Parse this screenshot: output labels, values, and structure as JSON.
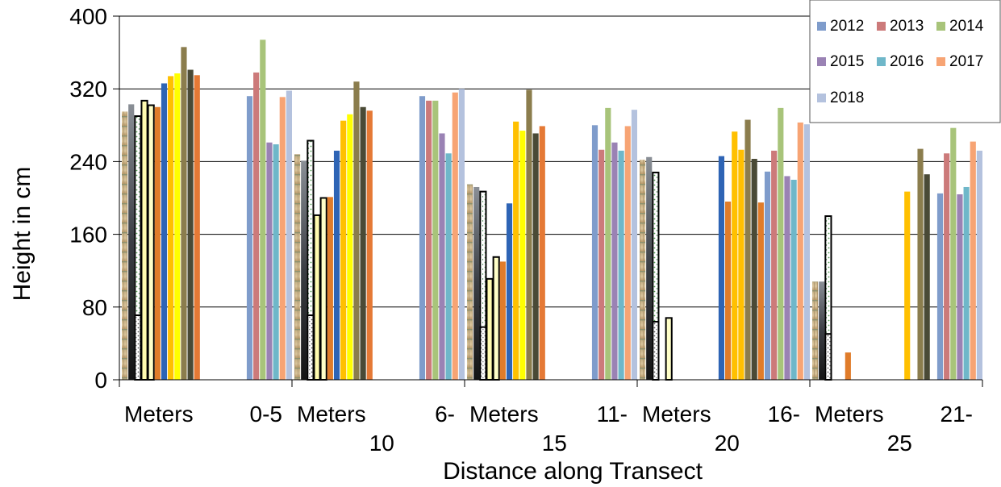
{
  "chart_data": {
    "type": "bar",
    "title": "",
    "xlabel": "Distance along Transect",
    "ylabel": "Height in cm",
    "ylim": [
      0,
      400
    ],
    "yticks": [
      0,
      80,
      160,
      240,
      320,
      400
    ],
    "grid": true,
    "legend_position": "top-right",
    "categories": [
      [
        "Meters",
        "0-5"
      ],
      [
        "Meters",
        "6-",
        "10"
      ],
      [
        "Meters",
        "11-",
        "15"
      ],
      [
        "Meters",
        "16-",
        "20"
      ],
      [
        "Meters",
        "21-",
        "25"
      ]
    ],
    "series": [
      {
        "color": "#d9c7a0",
        "pattern": "grass-photo",
        "values": [
          295,
          248,
          215,
          242,
          108
        ]
      },
      {
        "color": "#4a4a5a",
        "pattern": "dark-photo",
        "values": [
          303,
          241,
          212,
          245,
          108
        ]
      },
      {
        "color": "#ffffff",
        "pattern": "green-speckle",
        "values": [
          290,
          263,
          207,
          228,
          180
        ]
      },
      {
        "color": "#fffbb0",
        "values": [
          307,
          181,
          111,
          0,
          0
        ]
      },
      {
        "color": "#ffffc8",
        "values": [
          302,
          200,
          135,
          68,
          0
        ]
      },
      {
        "color": "#e07c2a",
        "values": [
          300,
          201,
          130,
          0,
          30
        ]
      },
      {
        "color": "#2e64b5",
        "values": [
          326,
          252,
          194,
          0,
          0
        ]
      },
      {
        "color": "#ffc000",
        "values": [
          334,
          285,
          284,
          0,
          0
        ]
      },
      {
        "color": "#ffff00",
        "values": [
          337,
          292,
          274,
          0,
          0
        ]
      },
      {
        "color": "#8b7d4d",
        "values": [
          366,
          328,
          319,
          0,
          0
        ]
      },
      {
        "color": "#4a4a36",
        "values": [
          341,
          300,
          271,
          0,
          0
        ]
      },
      {
        "color": "#e57935",
        "values": [
          335,
          296,
          279,
          0,
          0
        ]
      },
      {
        "color": "#2e64b5",
        "values": [
          0,
          0,
          0,
          246,
          0
        ]
      },
      {
        "color": "#e07c2a",
        "values": [
          0,
          0,
          0,
          196,
          0
        ]
      },
      {
        "color": "#ffc000",
        "values": [
          0,
          0,
          0,
          273,
          207
        ]
      },
      {
        "color": "#ffc000",
        "values": [
          0,
          0,
          0,
          253,
          0
        ]
      },
      {
        "color": "#8b7d4d",
        "values": [
          0,
          0,
          0,
          286,
          254
        ]
      },
      {
        "color": "#4a4a36",
        "values": [
          0,
          0,
          0,
          243,
          226
        ]
      },
      {
        "color": "#e07c2a",
        "values": [
          0,
          0,
          0,
          195,
          0
        ]
      },
      {
        "name": "2012",
        "color": "#7f9ccb",
        "values": [
          312,
          312,
          280,
          229,
          205
        ]
      },
      {
        "name": "2013",
        "color": "#cc7a7a",
        "values": [
          338,
          307,
          253,
          252,
          249
        ]
      },
      {
        "name": "2014",
        "color": "#a8c47a",
        "values": [
          374,
          307,
          299,
          299,
          277
        ]
      },
      {
        "name": "2015",
        "color": "#9a82b4",
        "values": [
          261,
          271,
          261,
          224,
          204
        ]
      },
      {
        "name": "2016",
        "color": "#6fb7c9",
        "values": [
          259,
          249,
          252,
          220,
          212
        ]
      },
      {
        "name": "2017",
        "color": "#f7a474",
        "values": [
          311,
          316,
          279,
          283,
          262
        ]
      },
      {
        "name": "2018",
        "color": "#b4c2de",
        "values": [
          318,
          320,
          297,
          281,
          252
        ]
      }
    ]
  }
}
